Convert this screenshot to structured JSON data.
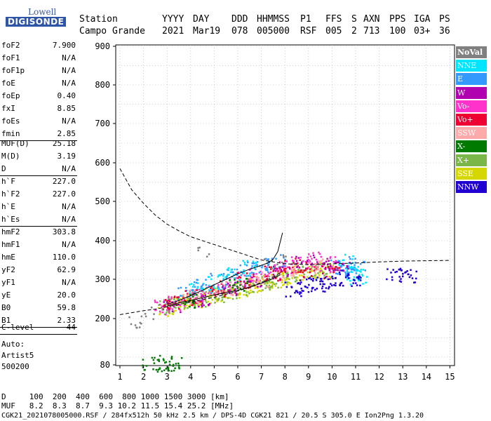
{
  "logo": {
    "top": "Lowell",
    "bottom": "DIGISONDE"
  },
  "header": {
    "labels": [
      "Station",
      "YYYY",
      "DAY",
      "DDD",
      "HHMMSS",
      "P1",
      "FFS",
      "S",
      "AXN",
      "PPS",
      "IGA",
      "PS"
    ],
    "values": [
      "Campo Grande",
      "2021",
      "Mar19",
      "078",
      "005000",
      "RSF",
      "005",
      "2",
      "713",
      "100",
      "03+",
      "36"
    ]
  },
  "params": {
    "group1": [
      {
        "label": "foF2",
        "value": "7.900"
      },
      {
        "label": "foF1",
        "value": "N/A"
      },
      {
        "label": "foF1p",
        "value": "N/A"
      },
      {
        "label": "foE",
        "value": "N/A"
      },
      {
        "label": "foEp",
        "value": "0.40"
      },
      {
        "label": "fxI",
        "value": "8.85"
      },
      {
        "label": "foEs",
        "value": "N/A"
      },
      {
        "label": "fmin",
        "value": "2.85"
      }
    ],
    "group2": [
      {
        "label": "MUF(D)",
        "value": "25.18"
      },
      {
        "label": "M(D)",
        "value": "3.19"
      },
      {
        "label": "D",
        "value": "N/A"
      }
    ],
    "group3": [
      {
        "label": "h`F",
        "value": "227.0"
      },
      {
        "label": "h`F2",
        "value": "227.0"
      },
      {
        "label": "h`E",
        "value": "N/A"
      },
      {
        "label": "h`Es",
        "value": "N/A"
      }
    ],
    "group4": [
      {
        "label": "hmF2",
        "value": "303.8"
      },
      {
        "label": "hmF1",
        "value": "N/A"
      },
      {
        "label": "hmE",
        "value": "110.0"
      },
      {
        "label": "yF2",
        "value": "62.9"
      },
      {
        "label": "yF1",
        "value": "N/A"
      },
      {
        "label": "yE",
        "value": "20.0"
      },
      {
        "label": "B0",
        "value": "59.8"
      },
      {
        "label": "B1",
        "value": "2.33"
      }
    ],
    "group5": [
      {
        "label": "C-level",
        "value": "44"
      }
    ],
    "auto": [
      "Auto:",
      "Artist5",
      "500200"
    ]
  },
  "legend": [
    {
      "label": "NoVal",
      "color": "#808080"
    },
    {
      "label": "NNE",
      "color": "#00e5ff"
    },
    {
      "label": "E",
      "color": "#3399ff"
    },
    {
      "label": "W",
      "color": "#b000b0"
    },
    {
      "label": "Vo-",
      "color": "#ff33cc"
    },
    {
      "label": "Vo+",
      "color": "#ee0033"
    },
    {
      "label": "SSW",
      "color": "#ffaaaa"
    },
    {
      "label": "X-",
      "color": "#007a00"
    },
    {
      "label": "X+",
      "color": "#7ab648"
    },
    {
      "label": "SSE",
      "color": "#d6d600"
    },
    {
      "label": "NNW",
      "color": "#2000d0"
    }
  ],
  "footer": {
    "line1": "D     100  200  400  600  800 1000 1500 3000 [km]",
    "line2": "MUF   8.2  8.3  8.7  9.3 10.2 11.5 15.4 25.2 [MHz]",
    "line3": "CGK21_2021078005000.RSF / 284fx512h 50 kHz 2.5 km / DPS-4D CGK21 821 / 20.5 S 305.0 E Ion2Png 1.3.20"
  },
  "chart_data": {
    "type": "scatter",
    "xlim": [
      1,
      15
    ],
    "ylim": [
      80,
      900
    ],
    "xticks": [
      "1",
      "2",
      "3",
      "4",
      "5",
      "6",
      "7",
      "8",
      "9",
      "10",
      "11",
      "12",
      "13",
      "14",
      "15"
    ],
    "yticks": [
      "80",
      "200",
      "300",
      "400",
      "500",
      "600",
      "700",
      "800",
      "900"
    ],
    "clusters": [
      {
        "class": "SSE",
        "points": [
          [
            2.9,
            228
          ],
          [
            3.3,
            236
          ],
          [
            3.7,
            244
          ],
          [
            4.2,
            250
          ],
          [
            4.7,
            258
          ],
          [
            5.2,
            265
          ],
          [
            5.7,
            272
          ],
          [
            6.2,
            278
          ],
          [
            6.7,
            285
          ],
          [
            7.2,
            292
          ],
          [
            7.7,
            300
          ],
          [
            8.2,
            308
          ],
          [
            8.7,
            318
          ],
          [
            9.2,
            322
          ],
          [
            9.7,
            326
          ]
        ]
      },
      {
        "class": "X+",
        "points": [
          [
            3.0,
            232
          ],
          [
            3.6,
            242
          ],
          [
            4.3,
            252
          ],
          [
            5.0,
            262
          ],
          [
            5.6,
            270
          ],
          [
            6.3,
            280
          ],
          [
            7.0,
            290
          ],
          [
            7.6,
            298
          ],
          [
            8.4,
            310
          ],
          [
            9.1,
            318
          ],
          [
            9.8,
            322
          ]
        ]
      },
      {
        "class": "Vo-",
        "points": [
          [
            2.7,
            230
          ],
          [
            3.4,
            240
          ],
          [
            4.1,
            258
          ],
          [
            4.8,
            272
          ],
          [
            5.5,
            285
          ],
          [
            6.2,
            300
          ],
          [
            6.8,
            312
          ],
          [
            7.4,
            322
          ],
          [
            8.0,
            332
          ],
          [
            8.6,
            342
          ],
          [
            9.3,
            352
          ],
          [
            9.8,
            340
          ]
        ]
      },
      {
        "class": "E",
        "points": [
          [
            3.8,
            262
          ],
          [
            4.5,
            282
          ],
          [
            5.1,
            298
          ],
          [
            5.8,
            312
          ],
          [
            6.4,
            326
          ],
          [
            7.0,
            336
          ],
          [
            7.6,
            346
          ],
          [
            10.3,
            332
          ],
          [
            10.8,
            322
          ],
          [
            11.0,
            340
          ]
        ]
      },
      {
        "class": "NNE",
        "points": [
          [
            4.2,
            273
          ],
          [
            5.0,
            294
          ],
          [
            5.7,
            312
          ],
          [
            6.5,
            330
          ],
          [
            10.5,
            346
          ],
          [
            10.9,
            316
          ],
          [
            11.1,
            308
          ]
        ]
      },
      {
        "class": "W",
        "points": [
          [
            3.2,
            236
          ],
          [
            4.4,
            250
          ],
          [
            5.6,
            276
          ],
          [
            6.6,
            296
          ],
          [
            7.8,
            320
          ],
          [
            8.8,
            348
          ],
          [
            9.6,
            344
          ],
          [
            10.4,
            330
          ]
        ]
      },
      {
        "class": "Vo+",
        "points": [
          [
            3.1,
            240
          ],
          [
            4.0,
            256
          ],
          [
            5.2,
            278
          ],
          [
            6.3,
            298
          ],
          [
            7.5,
            318
          ],
          [
            8.3,
            338
          ],
          [
            9.0,
            326
          ],
          [
            9.9,
            316
          ]
        ]
      },
      {
        "class": "NNW",
        "points": [
          [
            8.3,
            277
          ],
          [
            8.8,
            284
          ],
          [
            9.3,
            290
          ],
          [
            9.8,
            298
          ],
          [
            10.3,
            305
          ],
          [
            10.8,
            300
          ],
          [
            12.6,
            312
          ],
          [
            13.2,
            310
          ]
        ]
      },
      {
        "class": "SSW",
        "points": [
          [
            4.0,
            258
          ],
          [
            5.4,
            280
          ],
          [
            6.9,
            300
          ],
          [
            8.1,
            322
          ],
          [
            9.4,
            336
          ]
        ]
      },
      {
        "class": "X-",
        "points": [
          [
            2.3,
            86
          ],
          [
            2.8,
            84
          ],
          [
            3.2,
            86
          ],
          [
            4.0,
            248
          ],
          [
            6.0,
            284
          ]
        ]
      },
      {
        "class": "NoVal",
        "points": [
          [
            1.7,
            188
          ],
          [
            2.0,
            188
          ],
          [
            2.4,
            215
          ],
          [
            4.6,
            380
          ],
          [
            7.3,
            350
          ],
          [
            8.0,
            360
          ]
        ]
      }
    ],
    "lines": [
      {
        "style": "dashed",
        "points": [
          [
            1.0,
            585
          ],
          [
            1.5,
            530
          ],
          [
            2.0,
            495
          ],
          [
            2.5,
            465
          ],
          [
            3.0,
            442
          ],
          [
            3.5,
            425
          ],
          [
            4.0,
            410
          ],
          [
            5.0,
            390
          ],
          [
            6.0,
            370
          ],
          [
            7.0,
            350
          ],
          [
            8.0,
            340
          ],
          [
            9.0,
            338
          ],
          [
            10.0,
            340
          ],
          [
            11.0,
            342
          ],
          [
            12.0,
            345
          ],
          [
            13.0,
            347
          ],
          [
            14.0,
            348
          ],
          [
            15.0,
            349
          ]
        ]
      },
      {
        "style": "dashed",
        "points": [
          [
            1.0,
            210
          ],
          [
            1.5,
            215
          ],
          [
            2.0,
            220
          ],
          [
            2.5,
            224
          ],
          [
            3.0,
            230
          ],
          [
            3.5,
            236
          ],
          [
            4.0,
            242
          ],
          [
            4.5,
            248
          ],
          [
            5.0,
            254
          ],
          [
            5.5,
            262
          ],
          [
            6.0,
            270
          ],
          [
            6.5,
            280
          ],
          [
            7.0,
            292
          ],
          [
            7.5,
            306
          ],
          [
            7.9,
            320
          ]
        ]
      },
      {
        "style": "solid",
        "points": [
          [
            3.0,
            232
          ],
          [
            3.5,
            240
          ],
          [
            4.0,
            246
          ],
          [
            4.5,
            253
          ],
          [
            5.0,
            260
          ],
          [
            5.5,
            266
          ],
          [
            6.0,
            272
          ],
          [
            6.5,
            280
          ],
          [
            7.0,
            290
          ],
          [
            7.5,
            302
          ],
          [
            7.8,
            312
          ]
        ]
      },
      {
        "style": "solid",
        "points": [
          [
            3.0,
            236
          ],
          [
            3.5,
            246
          ],
          [
            4.0,
            258
          ],
          [
            4.5,
            272
          ],
          [
            5.0,
            286
          ],
          [
            5.5,
            300
          ],
          [
            6.0,
            314
          ],
          [
            6.5,
            326
          ],
          [
            7.0,
            336
          ],
          [
            7.3,
            343
          ],
          [
            7.5,
            352
          ],
          [
            7.7,
            372
          ],
          [
            7.9,
            420
          ]
        ]
      }
    ]
  }
}
